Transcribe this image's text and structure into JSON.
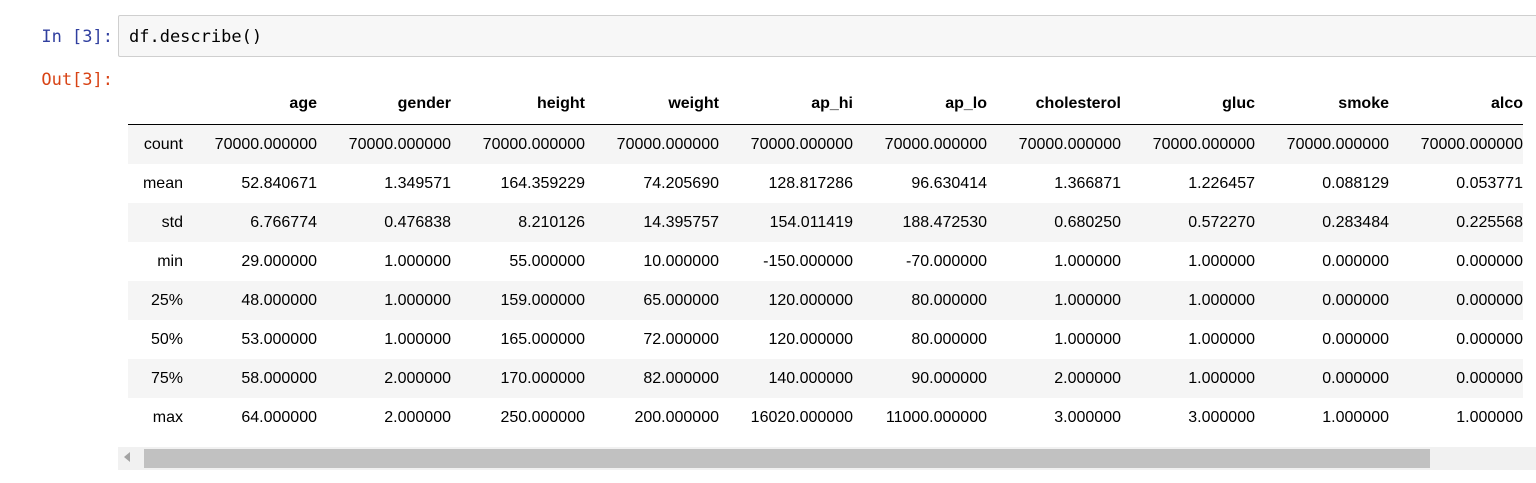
{
  "input_prompt": "In [3]:",
  "input_code": "df.describe()",
  "output_prompt": "Out[3]:",
  "table": {
    "columns": [
      "age",
      "gender",
      "height",
      "weight",
      "ap_hi",
      "ap_lo",
      "cholesterol",
      "gluc",
      "smoke",
      "alco"
    ],
    "rows": [
      {
        "index": "count",
        "values": [
          "70000.000000",
          "70000.000000",
          "70000.000000",
          "70000.000000",
          "70000.000000",
          "70000.000000",
          "70000.000000",
          "70000.000000",
          "70000.000000",
          "70000.000000"
        ]
      },
      {
        "index": "mean",
        "values": [
          "52.840671",
          "1.349571",
          "164.359229",
          "74.205690",
          "128.817286",
          "96.630414",
          "1.366871",
          "1.226457",
          "0.088129",
          "0.053771"
        ]
      },
      {
        "index": "std",
        "values": [
          "6.766774",
          "0.476838",
          "8.210126",
          "14.395757",
          "154.011419",
          "188.472530",
          "0.680250",
          "0.572270",
          "0.283484",
          "0.225568"
        ]
      },
      {
        "index": "min",
        "values": [
          "29.000000",
          "1.000000",
          "55.000000",
          "10.000000",
          "-150.000000",
          "-70.000000",
          "1.000000",
          "1.000000",
          "0.000000",
          "0.000000"
        ]
      },
      {
        "index": "25%",
        "values": [
          "48.000000",
          "1.000000",
          "159.000000",
          "65.000000",
          "120.000000",
          "80.000000",
          "1.000000",
          "1.000000",
          "0.000000",
          "0.000000"
        ]
      },
      {
        "index": "50%",
        "values": [
          "53.000000",
          "1.000000",
          "165.000000",
          "72.000000",
          "120.000000",
          "80.000000",
          "1.000000",
          "1.000000",
          "0.000000",
          "0.000000"
        ]
      },
      {
        "index": "75%",
        "values": [
          "58.000000",
          "2.000000",
          "170.000000",
          "82.000000",
          "140.000000",
          "90.000000",
          "2.000000",
          "1.000000",
          "0.000000",
          "0.000000"
        ]
      },
      {
        "index": "max",
        "values": [
          "64.000000",
          "2.000000",
          "250.000000",
          "200.000000",
          "16020.000000",
          "11000.000000",
          "3.000000",
          "3.000000",
          "1.000000",
          "1.000000"
        ]
      }
    ]
  },
  "colors": {
    "input_prompt": "#303f9f",
    "output_prompt": "#d84315",
    "input_background": "#f7f7f7",
    "stripe_row": "#f5f5f5"
  }
}
